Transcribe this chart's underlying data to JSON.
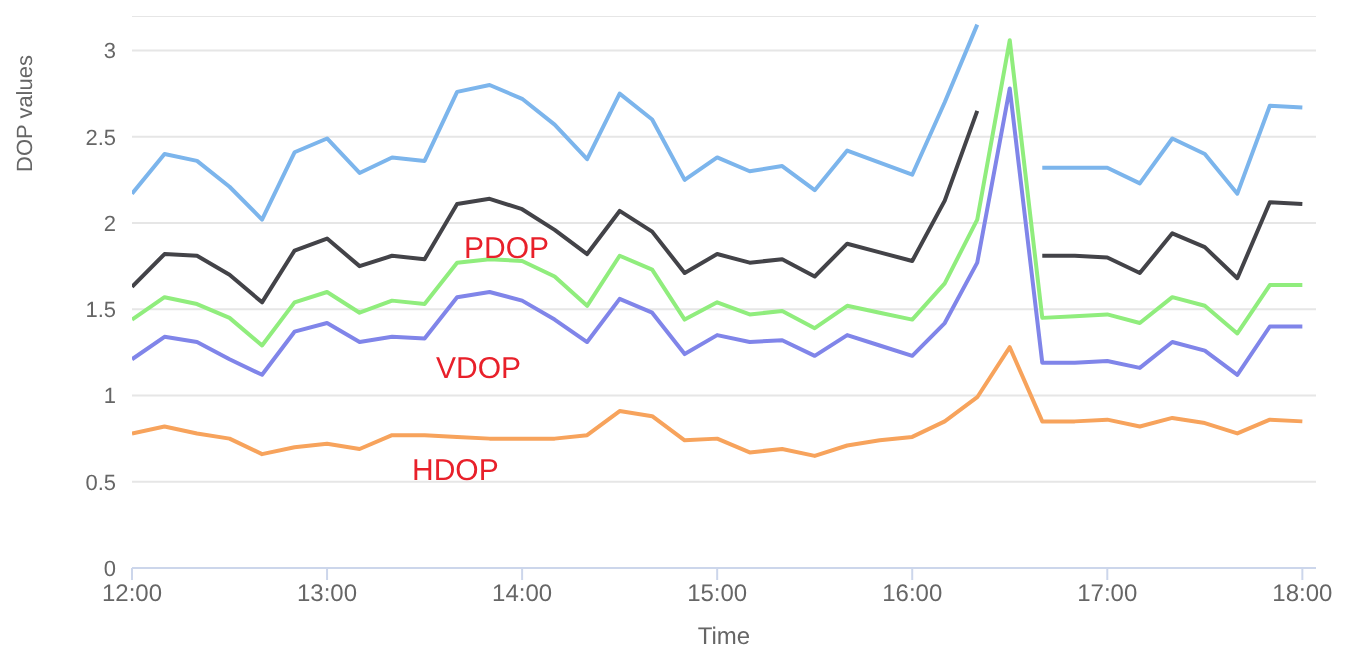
{
  "chart_data": {
    "type": "line",
    "xlabel": "Time",
    "ylabel": "DOP values",
    "x": [
      12,
      12.1667,
      12.3333,
      12.5,
      12.6667,
      12.8333,
      13,
      13.1667,
      13.3333,
      13.5,
      13.6667,
      13.8333,
      14,
      14.1667,
      14.3333,
      14.5,
      14.6667,
      14.8333,
      15,
      15.1667,
      15.3333,
      15.5,
      15.6667,
      15.8333,
      16,
      16.1667,
      16.3333,
      16.5,
      16.6667,
      16.8333,
      17,
      17.1667,
      17.3333,
      17.5,
      17.6667,
      17.8333,
      18
    ],
    "series": [
      {
        "color": "#7cb5ec",
        "values": [
          2.17,
          2.4,
          2.36,
          2.21,
          2.02,
          2.41,
          2.49,
          2.29,
          2.38,
          2.36,
          2.76,
          2.8,
          2.72,
          2.57,
          2.37,
          2.75,
          2.6,
          2.25,
          2.38,
          2.3,
          2.33,
          2.19,
          2.42,
          2.35,
          2.28,
          2.7,
          3.15,
          null,
          2.32,
          2.32,
          2.32,
          2.23,
          2.49,
          2.4,
          2.17,
          2.68,
          2.67
        ]
      },
      {
        "color": "#434348",
        "values": [
          1.63,
          1.82,
          1.81,
          1.7,
          1.54,
          1.84,
          1.91,
          1.75,
          1.81,
          1.79,
          2.11,
          2.14,
          2.08,
          1.96,
          1.82,
          2.07,
          1.95,
          1.71,
          1.82,
          1.77,
          1.79,
          1.69,
          1.88,
          1.83,
          1.78,
          2.13,
          2.65,
          null,
          1.81,
          1.81,
          1.8,
          1.71,
          1.94,
          1.86,
          1.68,
          2.12,
          2.11
        ]
      },
      {
        "color": "#90ed7d",
        "values": [
          1.44,
          1.57,
          1.53,
          1.45,
          1.29,
          1.54,
          1.6,
          1.48,
          1.55,
          1.53,
          1.77,
          1.79,
          1.78,
          1.69,
          1.52,
          1.81,
          1.73,
          1.44,
          1.54,
          1.47,
          1.49,
          1.39,
          1.52,
          1.48,
          1.44,
          1.65,
          2.02,
          3.06,
          1.45,
          1.46,
          1.47,
          1.42,
          1.57,
          1.52,
          1.36,
          1.64,
          1.64
        ]
      },
      {
        "color": "#8085e9",
        "values": [
          1.21,
          1.34,
          1.31,
          1.21,
          1.12,
          1.37,
          1.42,
          1.31,
          1.34,
          1.33,
          1.57,
          1.6,
          1.55,
          1.44,
          1.31,
          1.56,
          1.48,
          1.24,
          1.35,
          1.31,
          1.32,
          1.23,
          1.35,
          1.29,
          1.23,
          1.42,
          1.77,
          2.78,
          1.19,
          1.19,
          1.2,
          1.16,
          1.31,
          1.26,
          1.12,
          1.4,
          1.4
        ]
      },
      {
        "color": "#f7a35c",
        "values": [
          0.78,
          0.82,
          0.78,
          0.75,
          0.66,
          0.7,
          0.72,
          0.69,
          0.77,
          0.77,
          0.76,
          0.75,
          0.75,
          0.75,
          0.77,
          0.91,
          0.88,
          0.74,
          0.75,
          0.67,
          0.69,
          0.65,
          0.71,
          0.74,
          0.76,
          0.85,
          0.99,
          1.28,
          0.85,
          0.85,
          0.86,
          0.82,
          0.87,
          0.84,
          0.78,
          0.86,
          0.85
        ]
      }
    ],
    "annotations": [
      "PDOP",
      "VDOP",
      "HDOP"
    ],
    "xlim": [
      12,
      18.07
    ],
    "xticks": [
      {
        "value": 12,
        "label": "12:00"
      },
      {
        "value": 13,
        "label": "13:00"
      },
      {
        "value": 14,
        "label": "14:00"
      },
      {
        "value": 15,
        "label": "15:00"
      },
      {
        "value": 16,
        "label": "16:00"
      },
      {
        "value": 17,
        "label": "17:00"
      },
      {
        "value": 18,
        "label": "18:00"
      }
    ],
    "ylim": [
      0,
      3.2
    ],
    "yticks": [
      0,
      0.5,
      1,
      1.5,
      2,
      2.5,
      3
    ],
    "grid": "y",
    "legend": false,
    "marker": "none",
    "line_style": "solid"
  }
}
